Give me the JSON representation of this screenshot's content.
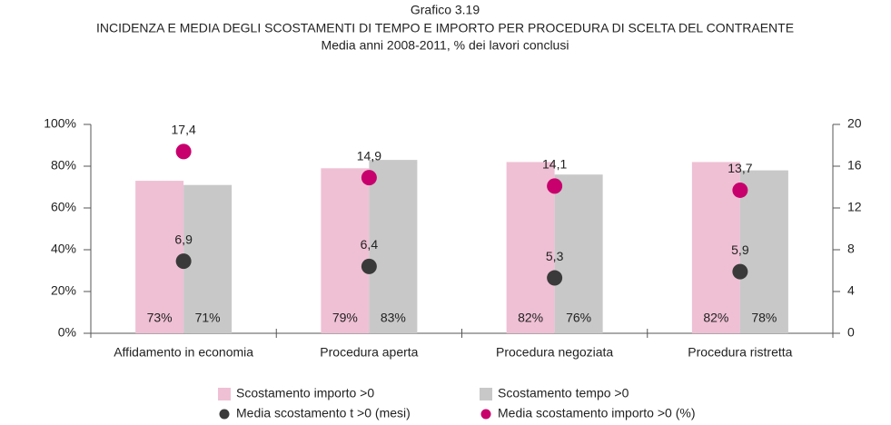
{
  "chart_data": {
    "type": "bar",
    "title": "Grafico 3.19",
    "subtitle": [
      "INCIDENZA E MEDIA DEGLI SCOSTAMENTI DI TEMPO E IMPORTO PER PROCEDURA DI SCELTA DEL CONTRAENTE",
      "Media anni 2008-2011, % dei lavori conclusi"
    ],
    "categories": [
      "Affidamento in economia",
      "Procedura aperta",
      "Procedura negoziata",
      "Procedura ristretta"
    ],
    "series": [
      {
        "name": "Scostamento importo >0",
        "color": "#efc0d3",
        "type": "bar",
        "values": [
          73,
          79,
          82,
          82
        ],
        "value_labels": [
          "73%",
          "79%",
          "82%",
          "82%"
        ]
      },
      {
        "name": "Scostamento tempo >0",
        "color": "#c8c8c8",
        "type": "bar",
        "values": [
          71,
          83,
          76,
          78
        ],
        "value_labels": [
          "71%",
          "83%",
          "76%",
          "78%"
        ]
      },
      {
        "name": "Media scostamento t >0 (mesi)",
        "color": "#3a3a3a",
        "type": "scatter",
        "axis": "y2",
        "values": [
          6.9,
          6.4,
          5.3,
          5.9
        ],
        "value_labels": [
          "6,9",
          "6,4",
          "5,3",
          "5,9"
        ]
      },
      {
        "name": "Media scostamento importo >0 (%)",
        "color": "#c8006e",
        "type": "scatter",
        "axis": "y2",
        "values": [
          17.4,
          14.9,
          14.1,
          13.7
        ],
        "value_labels": [
          "17,4",
          "14,9",
          "14,1",
          "13,7"
        ]
      }
    ],
    "ylim": [
      0,
      100
    ],
    "yticks": [
      {
        "value": 0,
        "label": "0%"
      },
      {
        "value": 20,
        "label": "20%"
      },
      {
        "value": 40,
        "label": "40%"
      },
      {
        "value": 60,
        "label": "60%"
      },
      {
        "value": 80,
        "label": "80%"
      },
      {
        "value": 100,
        "label": "100%"
      }
    ],
    "y2lim": [
      0,
      20
    ],
    "y2ticks": [
      0,
      4,
      8,
      12,
      16,
      20
    ],
    "grid": false
  }
}
